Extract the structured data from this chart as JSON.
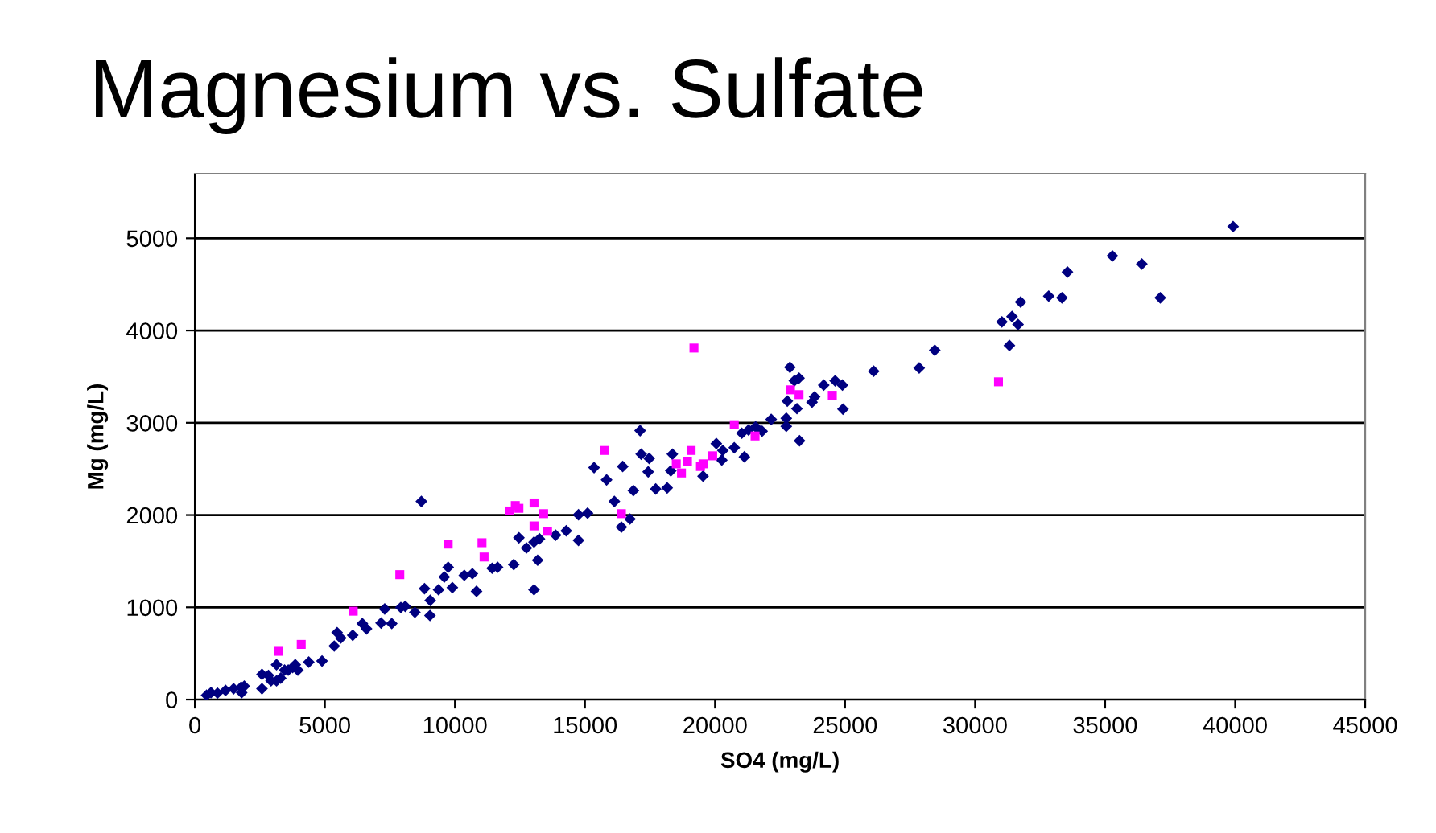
{
  "chart_data": {
    "type": "scatter",
    "title": "Magnesium vs. Sulfate",
    "xlabel": "SO4 (mg/L)",
    "ylabel": "Mg (mg/L)",
    "xlim": [
      0,
      45000
    ],
    "xticks": [
      0,
      5000,
      10000,
      15000,
      20000,
      25000,
      30000,
      35000,
      40000,
      45000
    ],
    "ylim": [
      0,
      5700
    ],
    "yticks": [
      0,
      1000,
      2000,
      3000,
      4000,
      5000
    ],
    "grid": "y",
    "legend": false,
    "series": [
      {
        "color": "#000080",
        "marker": "diamond",
        "x": [
          450,
          620,
          870,
          1180,
          1490,
          1780,
          1800,
          1900,
          2580,
          2580,
          2830,
          2930,
          3140,
          3140,
          3300,
          3450,
          3590,
          3760,
          3860,
          3960,
          4380,
          4890,
          5360,
          5470,
          5610,
          6070,
          6440,
          6600,
          7160,
          7300,
          7570,
          7920,
          8090,
          8460,
          8710,
          8830,
          9050,
          9040,
          9370,
          9590,
          9740,
          9900,
          10360,
          10670,
          10830,
          11430,
          11640,
          12260,
          12460,
          12750,
          13040,
          13040,
          13180,
          13250,
          13870,
          14280,
          14750,
          14750,
          15100,
          15350,
          15830,
          16130,
          16400,
          16450,
          16860,
          16730,
          17120,
          17160,
          17430,
          17470,
          17720,
          18160,
          18300,
          18360,
          19540,
          20050,
          20300,
          20260,
          20740,
          21130,
          21030,
          21290,
          21560,
          21810,
          22160,
          22740,
          22740,
          22780,
          22880,
          23050,
          23230,
          23150,
          23250,
          23730,
          23830,
          24180,
          24620,
          24900,
          24920,
          26100,
          27850,
          28450,
          31030,
          31320,
          31420,
          31650,
          31750,
          32830,
          33340,
          33550,
          35280,
          36410,
          37120,
          39920
        ],
        "values": [
          47,
          75,
          70,
          99,
          117,
          134,
          75,
          145,
          117,
          273,
          261,
          203,
          378,
          203,
          232,
          319,
          319,
          348,
          378,
          319,
          406,
          418,
          580,
          726,
          667,
          697,
          824,
          767,
          830,
          981,
          824,
          998,
          1010,
          946,
          2148,
          1202,
          1075,
          911,
          1190,
          1329,
          1434,
          1213,
          1347,
          1364,
          1173,
          1423,
          1434,
          1463,
          1754,
          1643,
          1707,
          1190,
          1510,
          1742,
          1782,
          1829,
          2003,
          1725,
          2021,
          2514,
          2381,
          2148,
          1869,
          2526,
          2265,
          1957,
          2915,
          2660,
          2468,
          2613,
          2282,
          2294,
          2479,
          2660,
          2422,
          2775,
          2700,
          2596,
          2730,
          2631,
          2887,
          2921,
          2956,
          2909,
          3037,
          2962,
          3049,
          3235,
          3601,
          3455,
          3484,
          3153,
          2805,
          3223,
          3281,
          3409,
          3455,
          3409,
          3148,
          3559,
          3594,
          3786,
          4094,
          3838,
          4152,
          4065,
          4309,
          4373,
          4355,
          4634,
          4808,
          4721,
          4355,
          5127
        ]
      },
      {
        "color": "#ff00ff",
        "marker": "square",
        "x": [
          3220,
          4090,
          6090,
          7880,
          9740,
          11040,
          11120,
          12110,
          12320,
          12460,
          13040,
          13040,
          13410,
          13560,
          15740,
          16400,
          18510,
          18710,
          19080,
          18940,
          19440,
          19540,
          19910,
          19190,
          20740,
          21540,
          22900,
          23230,
          24510,
          30900
        ],
        "values": [
          523,
          598,
          958,
          1354,
          1685,
          1700,
          1545,
          2044,
          2103,
          2073,
          2131,
          1882,
          2015,
          1824,
          2700,
          2015,
          2555,
          2456,
          2700,
          2584,
          2526,
          2555,
          2642,
          3810,
          2979,
          2857,
          3357,
          3305,
          3298,
          3444
        ]
      }
    ]
  }
}
